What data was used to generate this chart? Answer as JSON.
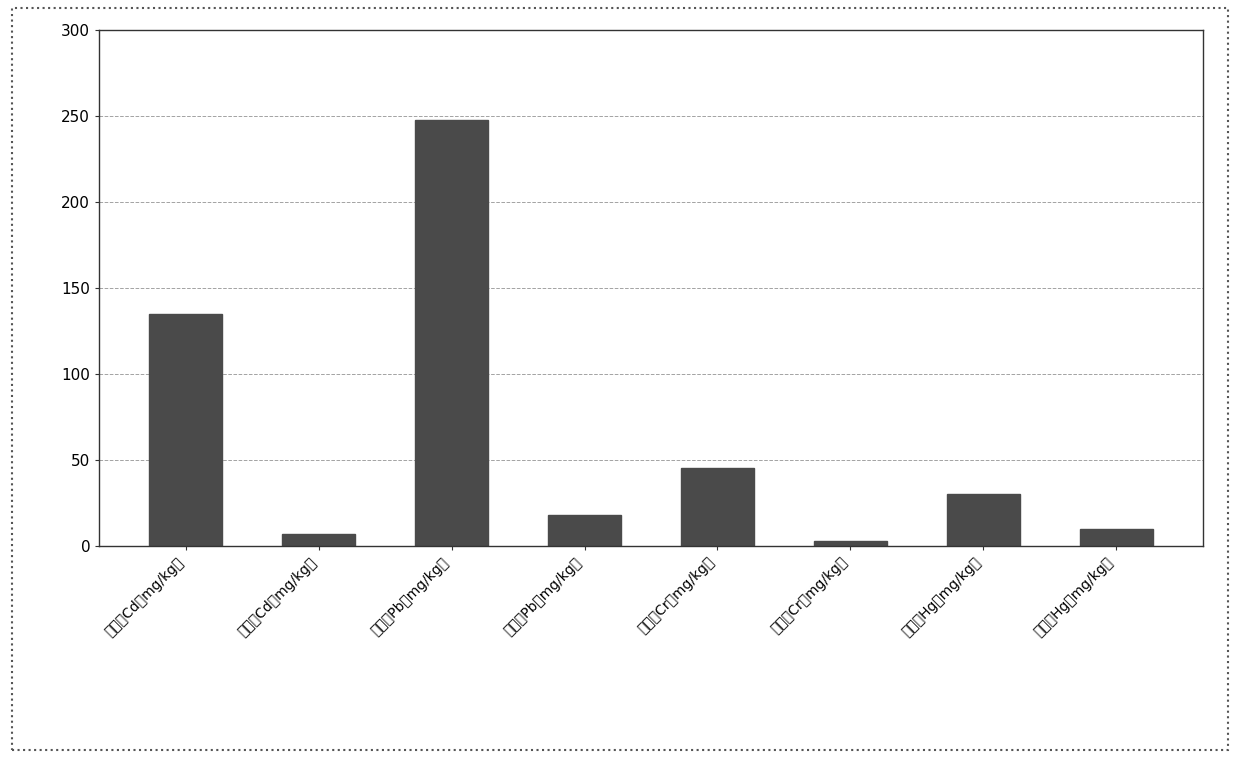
{
  "categories": [
    "处理前Cd（mg/kg）",
    "处理后Cd（mg/kg）",
    "处理前Pb（mg/kg）",
    "处理后Pb（mg/kg）",
    "处理前Cr（mg/kg）",
    "处理后Cr（mg/kg）",
    "处理前Hg（mg/kg）",
    "处理后Hg（mg/kg）"
  ],
  "values": [
    135,
    7,
    248,
    18,
    45,
    3,
    30,
    10
  ],
  "bar_color": "#4a4a4a",
  "ylim": [
    0,
    300
  ],
  "yticks": [
    0,
    50,
    100,
    150,
    200,
    250,
    300
  ],
  "background_color": "#ffffff",
  "fig_background_color": "#ffffff",
  "grid_color": "#999999",
  "tick_label_fontsize": 10,
  "label_rotation": 45,
  "bar_width": 0.55
}
